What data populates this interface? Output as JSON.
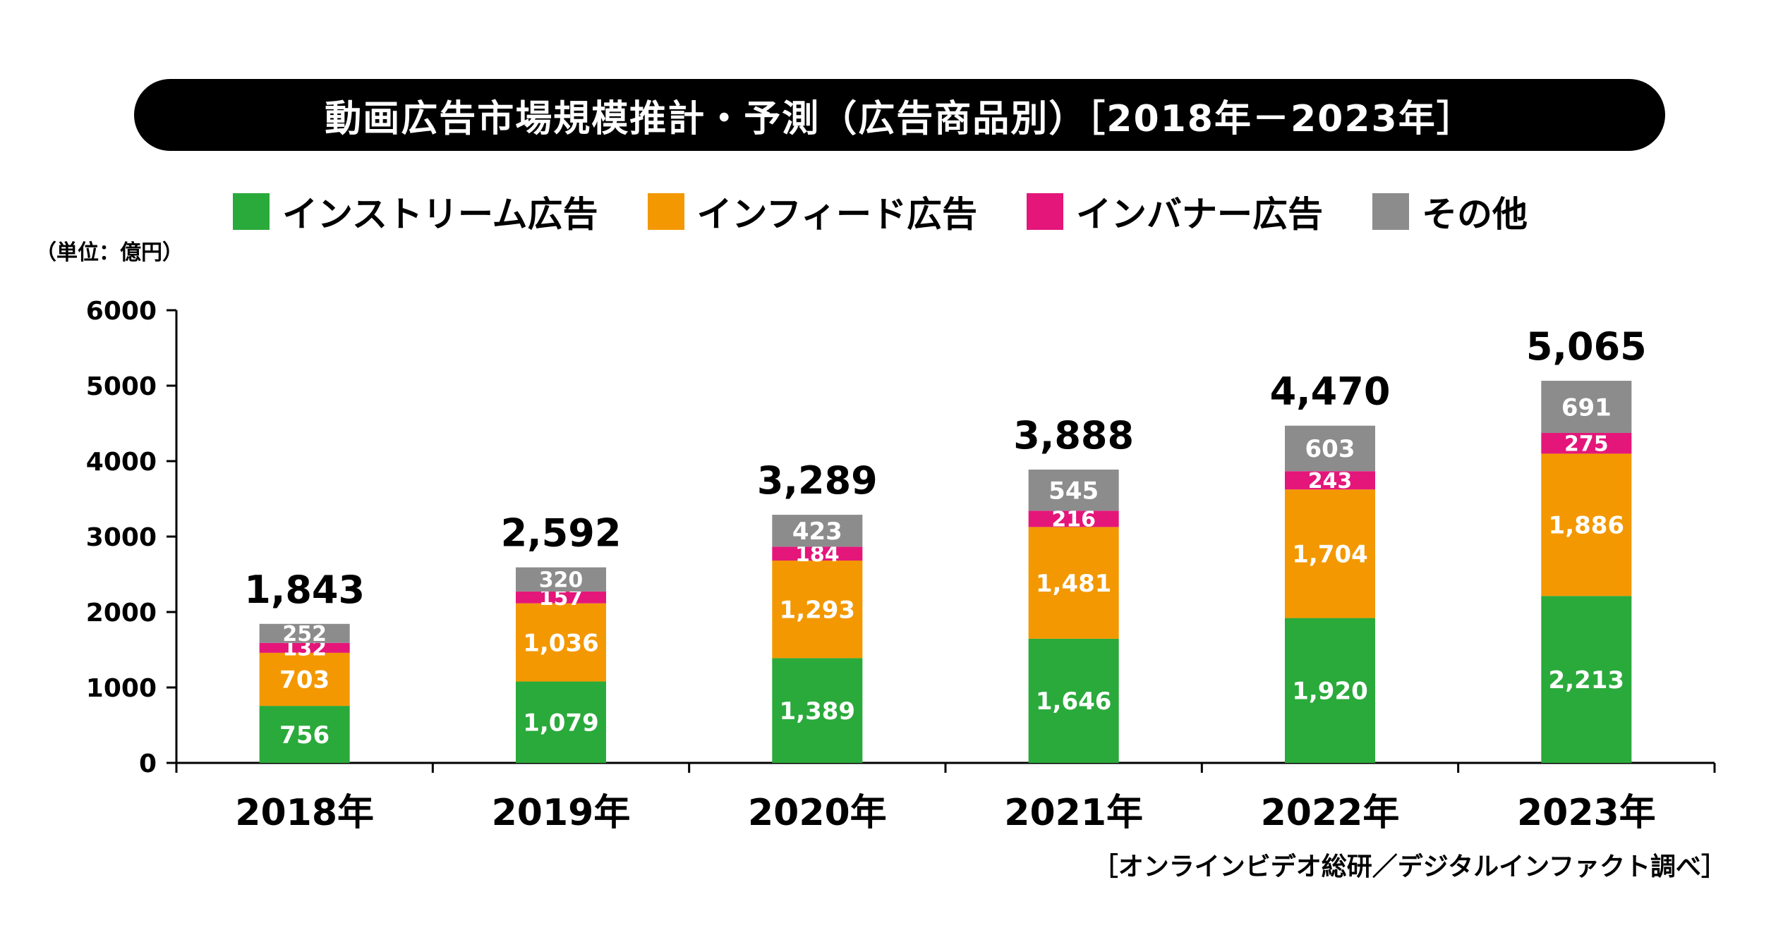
{
  "title": "動画広告市場規模推計・予測（広告商品別）［2018年－2023年］",
  "unit": "（単位：億円）",
  "source": "［オンラインビデオ総研／デジタルインファクト調べ］",
  "legend": [
    {
      "label": "インストリーム広告",
      "color": "#2aaa3b"
    },
    {
      "label": "インフィード広告",
      "color": "#f39800"
    },
    {
      "label": "インバナー広告",
      "color": "#e4167a"
    },
    {
      "label": "その他",
      "color": "#8c8c8c"
    }
  ],
  "chart_data": {
    "type": "bar",
    "stacked": true,
    "categories": [
      "2018年",
      "2019年",
      "2020年",
      "2021年",
      "2022年",
      "2023年"
    ],
    "series": [
      {
        "name": "インストリーム広告",
        "color": "#2aaa3b",
        "values": [
          756,
          1079,
          1389,
          1646,
          1920,
          2213
        ],
        "labels": [
          "756",
          "1,079",
          "1,389",
          "1,646",
          "1,920",
          "2,213"
        ]
      },
      {
        "name": "インフィード広告",
        "color": "#f39800",
        "values": [
          703,
          1036,
          1293,
          1481,
          1704,
          1886
        ],
        "labels": [
          "703",
          "1,036",
          "1,293",
          "1,481",
          "1,704",
          "1,886"
        ]
      },
      {
        "name": "インバナー広告",
        "color": "#e4167a",
        "values": [
          132,
          157,
          184,
          216,
          243,
          275
        ],
        "labels": [
          "132",
          "157",
          "184",
          "216",
          "243",
          "275"
        ]
      },
      {
        "name": "その他",
        "color": "#8c8c8c",
        "values": [
          252,
          320,
          423,
          545,
          603,
          691
        ],
        "labels": [
          "252",
          "320",
          "423",
          "545",
          "603",
          "691"
        ]
      }
    ],
    "totals": [
      1843,
      2592,
      3289,
      3888,
      4470,
      5065
    ],
    "total_labels": [
      "1,843",
      "2,592",
      "3,289",
      "3,888",
      "4,470",
      "5,065"
    ],
    "yticks": [
      "0",
      "1000",
      "2000",
      "3000",
      "4000",
      "5000",
      "6000"
    ],
    "ylim": [
      0,
      6000
    ],
    "xlabel": "",
    "ylabel": "（単位：億円）"
  }
}
